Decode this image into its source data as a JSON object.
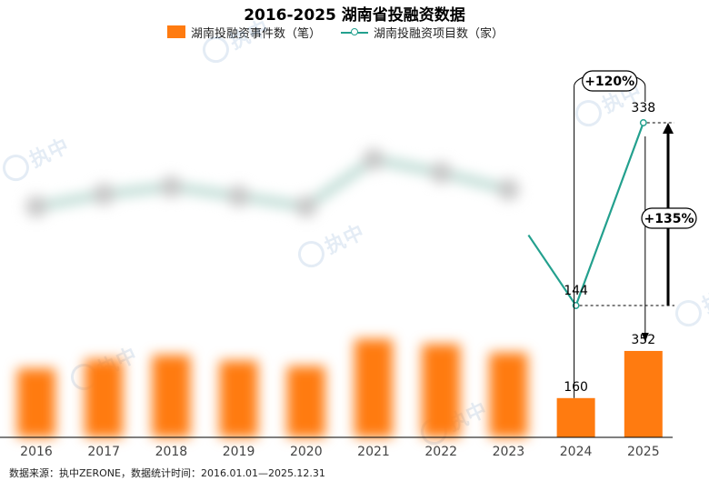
{
  "title": "2016-2025 湖南省投融资数据",
  "legend": {
    "bar_label": "湖南投融资事件数（笔）",
    "line_label": "湖南投融资项目数（家）"
  },
  "footer": "数据来源：执中ZERONE，数据统计时间：2016.01.01—2025.12.31",
  "watermark": "执中",
  "colors": {
    "bar": "#FF7B10",
    "line": "#23A08E",
    "text": "#000000",
    "axis": "#000000"
  },
  "chart_data": {
    "type": "bar",
    "categories": [
      "2016",
      "2017",
      "2018",
      "2019",
      "2020",
      "2021",
      "2022",
      "2023",
      "2024",
      "2025"
    ],
    "series": [
      {
        "name": "湖南投融资事件数（笔）",
        "type": "bar",
        "values": [
          280,
          318,
          335,
          312,
          290,
          400,
          380,
          345,
          160,
          352
        ],
        "data_labels": [
          null,
          null,
          null,
          null,
          null,
          null,
          null,
          null,
          "160",
          "352"
        ]
      },
      {
        "name": "湖南投融资项目数（家）",
        "type": "line",
        "values": [
          249,
          262,
          270,
          260,
          249,
          299,
          285,
          267,
          144,
          338
        ],
        "data_labels": [
          null,
          null,
          null,
          null,
          null,
          null,
          null,
          null,
          "144",
          "338"
        ]
      }
    ],
    "blurred_categories": [
      "2016",
      "2017",
      "2018",
      "2019",
      "2020",
      "2021",
      "2022",
      "2023"
    ],
    "annotations": [
      {
        "text": "+120%",
        "from": "2024",
        "to": "2025",
        "series": "湖南投融资事件数（笔）"
      },
      {
        "text": "+135%",
        "from": "2024",
        "to": "2025",
        "series": "湖南投融资项目数（家）"
      }
    ]
  }
}
